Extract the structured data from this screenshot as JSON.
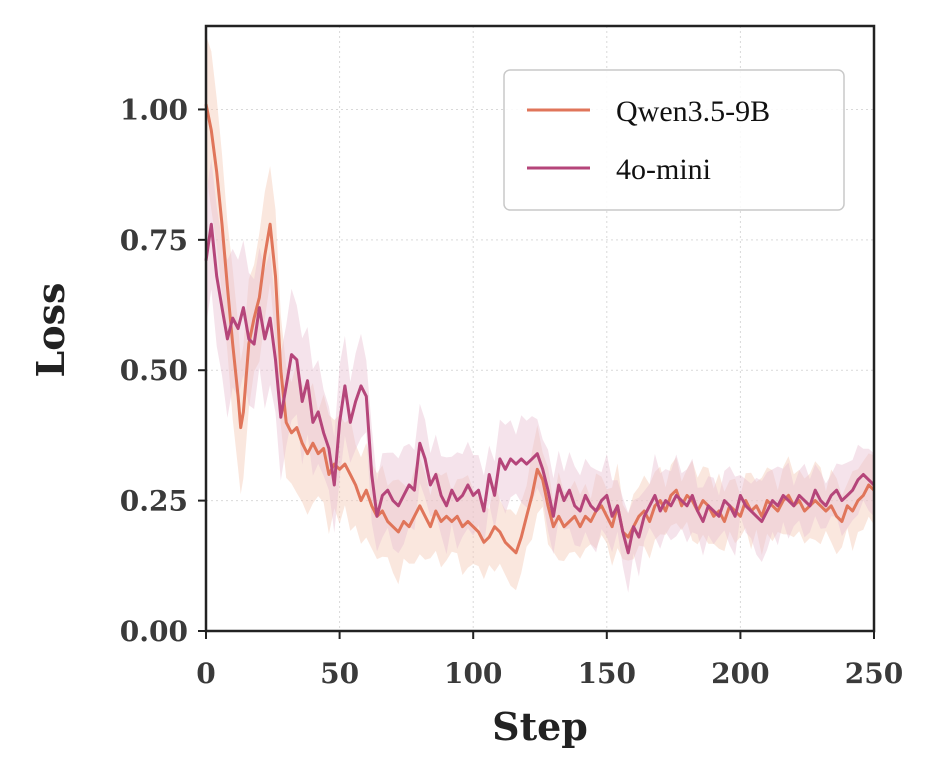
{
  "chart_data": {
    "type": "line",
    "title": "",
    "xlabel": "Step",
    "ylabel": "Loss",
    "xlim": [
      0,
      250
    ],
    "ylim": [
      0,
      1.16
    ],
    "xticks": [
      0,
      50,
      100,
      150,
      200,
      250
    ],
    "xtick_labels": [
      "0",
      "50",
      "100",
      "150",
      "200",
      "250"
    ],
    "yticks": [
      0,
      0.25,
      0.5,
      0.75,
      1.0
    ],
    "ytick_labels": [
      "0.00",
      "0.25",
      "0.50",
      "0.75",
      "1.00"
    ],
    "grid": true,
    "legend_position": "top-right",
    "series": [
      {
        "name": "Qwen3.5-9B",
        "color": "#e0755a",
        "band_color": "#f4c9b6",
        "x": [
          0,
          2,
          4,
          6,
          8,
          10,
          12,
          13,
          14,
          16,
          18,
          20,
          22,
          24,
          26,
          28,
          30,
          32,
          34,
          36,
          38,
          40,
          42,
          44,
          46,
          48,
          50,
          52,
          54,
          56,
          58,
          60,
          62,
          64,
          66,
          68,
          70,
          72,
          74,
          76,
          78,
          80,
          82,
          84,
          86,
          88,
          90,
          92,
          94,
          96,
          98,
          100,
          102,
          104,
          106,
          108,
          110,
          112,
          114,
          116,
          118,
          120,
          122,
          124,
          126,
          128,
          130,
          132,
          134,
          136,
          138,
          140,
          142,
          144,
          146,
          148,
          150,
          152,
          154,
          156,
          158,
          160,
          162,
          164,
          166,
          168,
          170,
          172,
          174,
          176,
          178,
          180,
          182,
          184,
          186,
          188,
          190,
          192,
          194,
          196,
          198,
          200,
          202,
          204,
          206,
          208,
          210,
          212,
          214,
          216,
          218,
          220,
          222,
          224,
          226,
          228,
          230,
          232,
          234,
          236,
          238,
          240,
          242,
          244,
          246,
          248,
          250
        ],
        "values": [
          1.01,
          0.96,
          0.88,
          0.78,
          0.66,
          0.55,
          0.45,
          0.39,
          0.42,
          0.55,
          0.6,
          0.64,
          0.72,
          0.78,
          0.68,
          0.5,
          0.4,
          0.38,
          0.39,
          0.36,
          0.34,
          0.36,
          0.34,
          0.35,
          0.3,
          0.32,
          0.31,
          0.32,
          0.3,
          0.28,
          0.25,
          0.27,
          0.24,
          0.22,
          0.23,
          0.21,
          0.2,
          0.19,
          0.21,
          0.2,
          0.22,
          0.24,
          0.22,
          0.2,
          0.23,
          0.21,
          0.22,
          0.21,
          0.22,
          0.2,
          0.21,
          0.2,
          0.19,
          0.17,
          0.18,
          0.2,
          0.19,
          0.17,
          0.16,
          0.15,
          0.18,
          0.22,
          0.26,
          0.31,
          0.29,
          0.24,
          0.2,
          0.22,
          0.2,
          0.21,
          0.22,
          0.2,
          0.22,
          0.21,
          0.23,
          0.24,
          0.22,
          0.2,
          0.24,
          0.19,
          0.18,
          0.2,
          0.22,
          0.23,
          0.21,
          0.24,
          0.25,
          0.23,
          0.26,
          0.27,
          0.24,
          0.26,
          0.25,
          0.23,
          0.25,
          0.24,
          0.22,
          0.23,
          0.21,
          0.24,
          0.23,
          0.22,
          0.25,
          0.23,
          0.24,
          0.22,
          0.25,
          0.24,
          0.23,
          0.25,
          0.26,
          0.24,
          0.25,
          0.23,
          0.24,
          0.25,
          0.24,
          0.23,
          0.24,
          0.22,
          0.21,
          0.24,
          0.23,
          0.25,
          0.26,
          0.28,
          0.27
        ]
      },
      {
        "name": "4o-mini",
        "color": "#b5457a",
        "band_color": "#e8c2d3",
        "x": [
          0,
          2,
          4,
          6,
          8,
          10,
          12,
          14,
          16,
          18,
          20,
          22,
          24,
          26,
          28,
          30,
          32,
          34,
          36,
          38,
          40,
          42,
          44,
          46,
          48,
          50,
          52,
          54,
          56,
          58,
          60,
          62,
          64,
          66,
          68,
          70,
          72,
          74,
          76,
          78,
          80,
          82,
          84,
          86,
          88,
          90,
          92,
          94,
          96,
          98,
          100,
          102,
          104,
          106,
          108,
          110,
          112,
          114,
          116,
          118,
          120,
          122,
          124,
          126,
          128,
          130,
          132,
          134,
          136,
          138,
          140,
          142,
          144,
          146,
          148,
          150,
          152,
          154,
          156,
          158,
          160,
          162,
          164,
          166,
          168,
          170,
          172,
          174,
          176,
          178,
          180,
          182,
          184,
          186,
          188,
          190,
          192,
          194,
          196,
          198,
          200,
          202,
          204,
          206,
          208,
          210,
          212,
          214,
          216,
          218,
          220,
          222,
          224,
          226,
          228,
          230,
          232,
          234,
          236,
          238,
          240,
          242,
          244,
          246,
          248,
          250
        ],
        "values": [
          0.71,
          0.78,
          0.68,
          0.62,
          0.56,
          0.6,
          0.58,
          0.62,
          0.56,
          0.55,
          0.62,
          0.56,
          0.6,
          0.52,
          0.41,
          0.47,
          0.53,
          0.52,
          0.44,
          0.48,
          0.4,
          0.42,
          0.38,
          0.35,
          0.28,
          0.4,
          0.47,
          0.4,
          0.44,
          0.47,
          0.45,
          0.3,
          0.22,
          0.26,
          0.27,
          0.25,
          0.24,
          0.26,
          0.28,
          0.27,
          0.36,
          0.33,
          0.28,
          0.3,
          0.26,
          0.24,
          0.27,
          0.25,
          0.26,
          0.28,
          0.26,
          0.27,
          0.23,
          0.3,
          0.26,
          0.33,
          0.31,
          0.33,
          0.32,
          0.33,
          0.32,
          0.33,
          0.34,
          0.31,
          0.27,
          0.22,
          0.28,
          0.25,
          0.27,
          0.24,
          0.23,
          0.26,
          0.24,
          0.23,
          0.25,
          0.26,
          0.22,
          0.24,
          0.19,
          0.15,
          0.2,
          0.18,
          0.22,
          0.24,
          0.26,
          0.23,
          0.25,
          0.24,
          0.26,
          0.25,
          0.24,
          0.26,
          0.23,
          0.21,
          0.24,
          0.23,
          0.22,
          0.25,
          0.24,
          0.22,
          0.26,
          0.24,
          0.23,
          0.22,
          0.21,
          0.23,
          0.25,
          0.24,
          0.26,
          0.25,
          0.24,
          0.26,
          0.25,
          0.24,
          0.27,
          0.25,
          0.24,
          0.26,
          0.27,
          0.25,
          0.26,
          0.27,
          0.29,
          0.3,
          0.29,
          0.28
        ]
      }
    ]
  }
}
